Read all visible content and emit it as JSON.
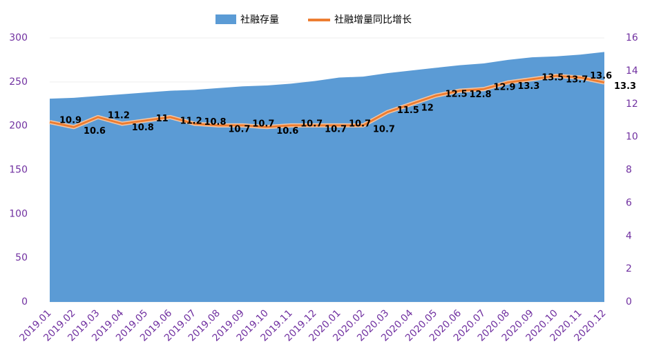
{
  "chart_data": {
    "type": "area_line",
    "categories": [
      "2019.01",
      "2019.02",
      "2019.03",
      "2019.04",
      "2019.05",
      "2019.06",
      "2019.07",
      "2019.08",
      "2019.09",
      "2019.10",
      "2019.11",
      "2019.12",
      "2020.01",
      "2020.02",
      "2020.03",
      "2020.04",
      "2020.05",
      "2020.06",
      "2020.07",
      "2020.08",
      "2020.09",
      "2020.10",
      "2020.11",
      "2020.12"
    ],
    "series": [
      {
        "name": "社融存量",
        "color": "#5b9bd5",
        "type": "area",
        "values": [
          231,
          232,
          234,
          236,
          238,
          240,
          241,
          243,
          245,
          246,
          248,
          251,
          255,
          256,
          260,
          263,
          266,
          269,
          271,
          275,
          278,
          279,
          281,
          284
        ]
      },
      {
        "name": "社融增量同比增长",
        "color": "#ed7d31",
        "type": "line",
        "axis": "y2",
        "values": [
          10.9,
          10.6,
          11.2,
          10.8,
          11,
          11.2,
          10.8,
          10.7,
          10.7,
          10.6,
          10.7,
          10.7,
          10.7,
          10.7,
          11.5,
          12,
          12.5,
          12.8,
          12.9,
          13.3,
          13.5,
          13.7,
          13.6,
          13.3
        ]
      }
    ],
    "ylim": [
      0,
      300
    ],
    "yticks": [
      0,
      50,
      100,
      150,
      200,
      250,
      300
    ],
    "y2lim": [
      0,
      16
    ],
    "y2ticks": [
      0,
      2,
      4,
      6,
      8,
      10,
      12,
      14,
      16
    ],
    "grid": true,
    "legend": "top"
  }
}
